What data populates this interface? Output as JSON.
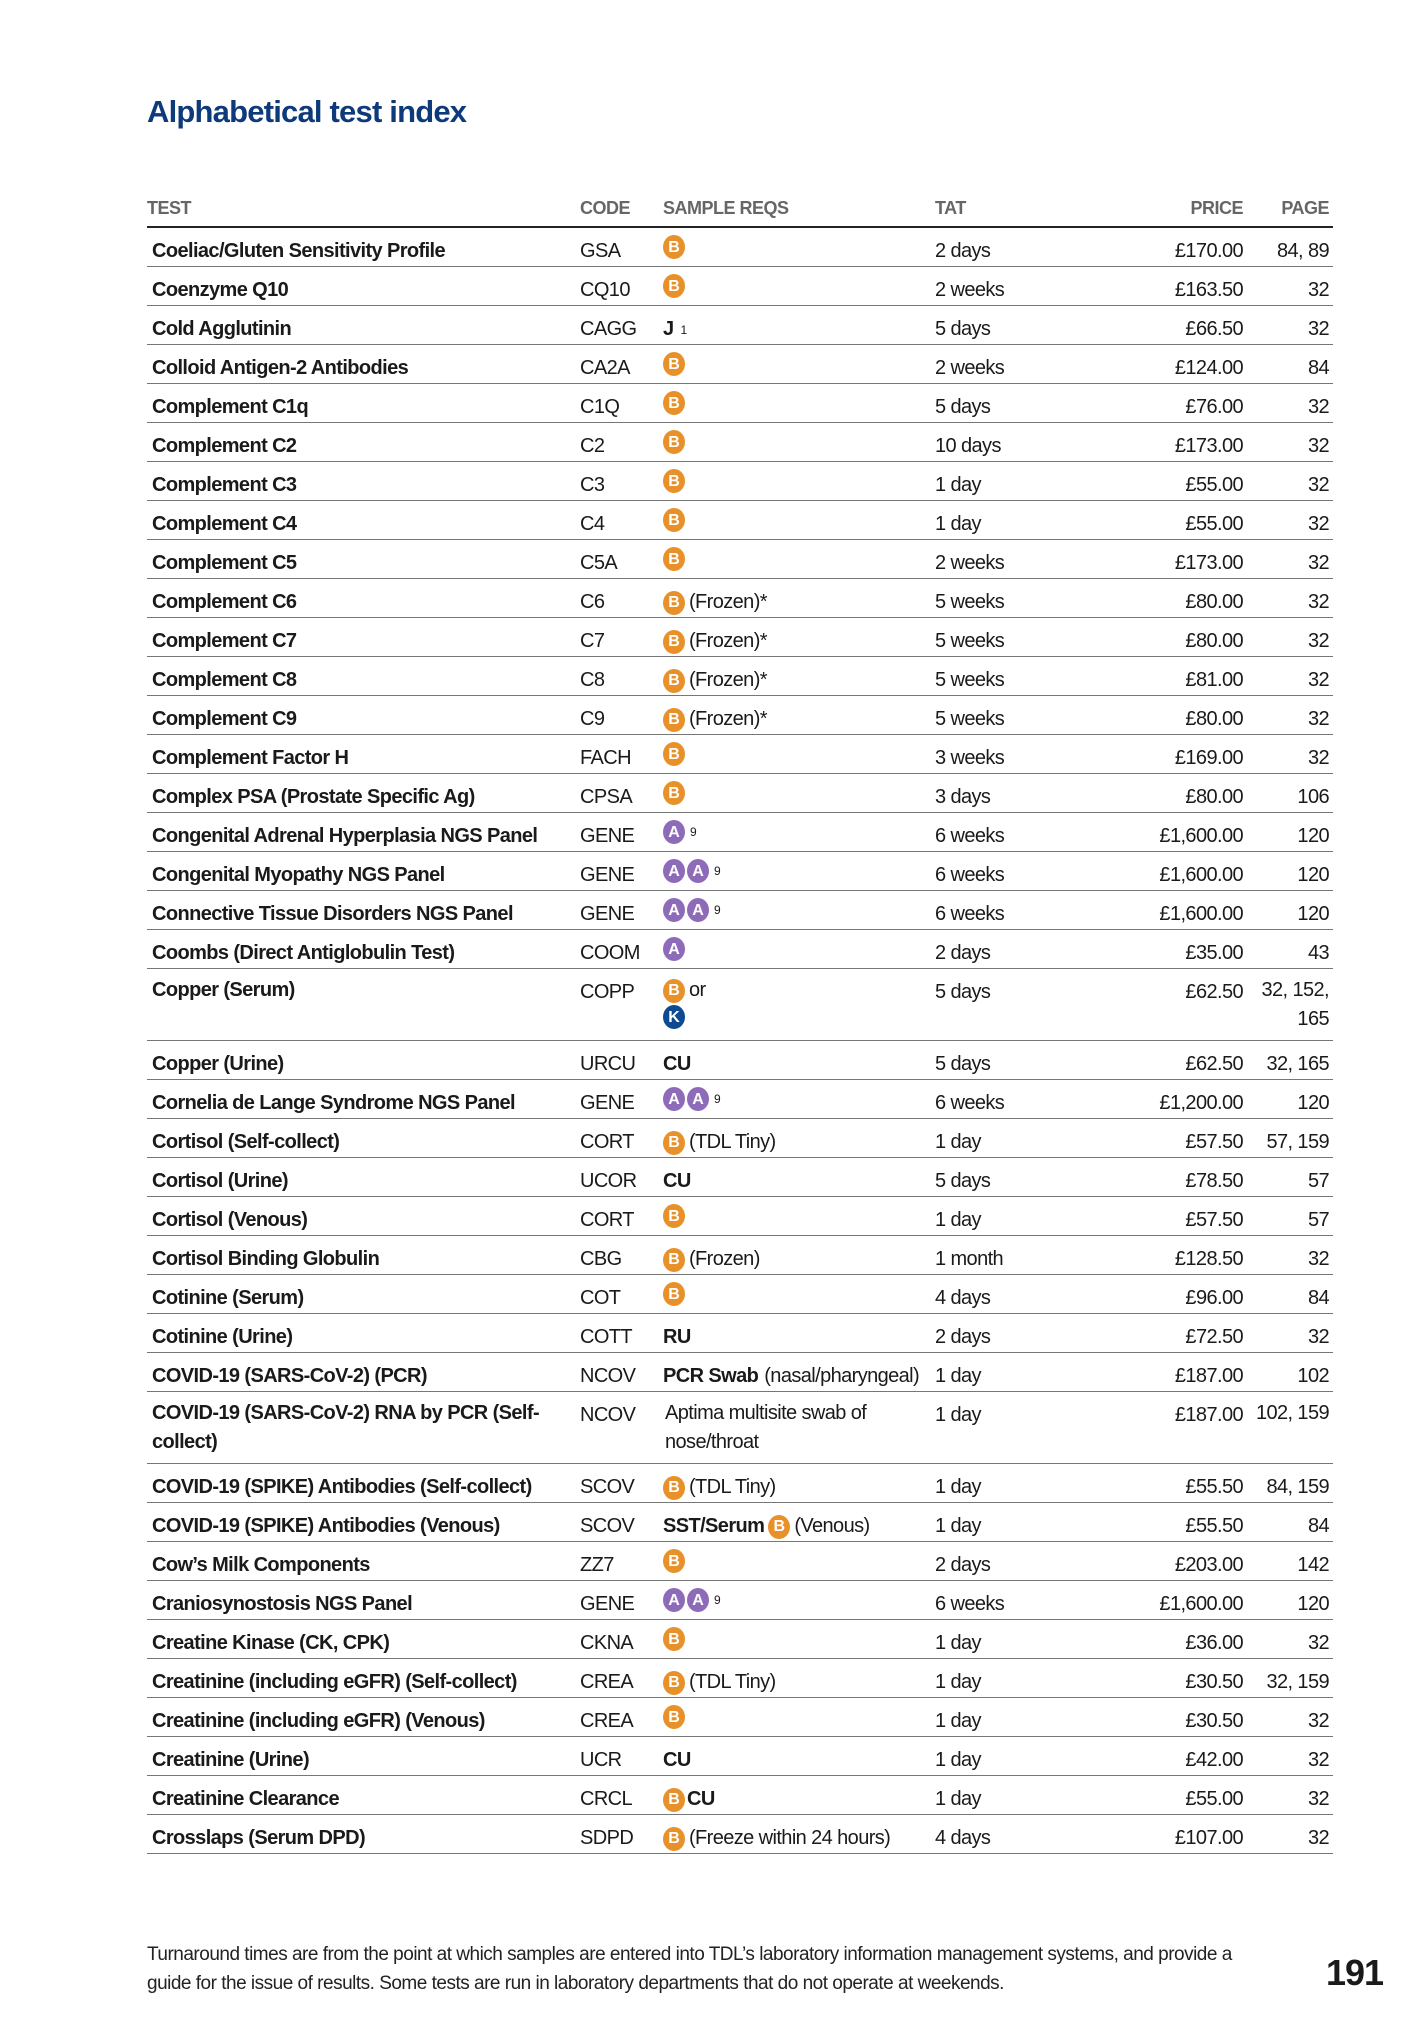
{
  "title": "Alphabetical test index",
  "columns": {
    "test": "TEST",
    "code": "CODE",
    "sample": "SAMPLE REQS",
    "tat": "TAT",
    "price": "PRICE",
    "page": "PAGE"
  },
  "badge_colors": {
    "B": "#e8912a",
    "A": "#8e6bb8",
    "K": "#0d4a8f"
  },
  "rows": [
    {
      "test": "Coeliac/Gluten Sensitivity Profile",
      "code": "GSA",
      "sample": [
        {
          "badge": "B"
        }
      ],
      "tat": "2 days",
      "price": "£170.00",
      "page": "84, 89"
    },
    {
      "test": "Coenzyme Q10",
      "code": "CQ10",
      "sample": [
        {
          "badge": "B"
        }
      ],
      "tat": "2 weeks",
      "price": "£163.50",
      "page": "32"
    },
    {
      "test": "Cold Agglutinin",
      "code": "CAGG",
      "sample": [
        {
          "bold": "J"
        },
        {
          "sup": "1"
        }
      ],
      "tat": "5 days",
      "price": "£66.50",
      "page": "32"
    },
    {
      "test": "Colloid Antigen-2 Antibodies",
      "code": "CA2A",
      "sample": [
        {
          "badge": "B"
        }
      ],
      "tat": "2 weeks",
      "price": "£124.00",
      "page": "84"
    },
    {
      "test": "Complement C1q",
      "code": "C1Q",
      "sample": [
        {
          "badge": "B"
        }
      ],
      "tat": "5 days",
      "price": "£76.00",
      "page": "32"
    },
    {
      "test": "Complement C2",
      "code": "C2",
      "sample": [
        {
          "badge": "B"
        }
      ],
      "tat": "10 days",
      "price": "£173.00",
      "page": "32"
    },
    {
      "test": "Complement C3",
      "code": "C3",
      "sample": [
        {
          "badge": "B"
        }
      ],
      "tat": "1 day",
      "price": "£55.00",
      "page": "32"
    },
    {
      "test": "Complement C4",
      "code": "C4",
      "sample": [
        {
          "badge": "B"
        }
      ],
      "tat": "1 day",
      "price": "£55.00",
      "page": "32"
    },
    {
      "test": "Complement C5",
      "code": "C5A",
      "sample": [
        {
          "badge": "B"
        }
      ],
      "tat": "2 weeks",
      "price": "£173.00",
      "page": "32"
    },
    {
      "test": "Complement C6",
      "code": "C6",
      "sample": [
        {
          "badge": "B"
        },
        {
          "text": "(Frozen)*"
        }
      ],
      "tat": "5 weeks",
      "price": "£80.00",
      "page": "32"
    },
    {
      "test": "Complement C7",
      "code": "C7",
      "sample": [
        {
          "badge": "B"
        },
        {
          "text": "(Frozen)*"
        }
      ],
      "tat": "5 weeks",
      "price": "£80.00",
      "page": "32"
    },
    {
      "test": "Complement C8",
      "code": "C8",
      "sample": [
        {
          "badge": "B"
        },
        {
          "text": "(Frozen)*"
        }
      ],
      "tat": "5 weeks",
      "price": "£81.00",
      "page": "32"
    },
    {
      "test": "Complement C9",
      "code": "C9",
      "sample": [
        {
          "badge": "B"
        },
        {
          "text": "(Frozen)*"
        }
      ],
      "tat": "5 weeks",
      "price": "£80.00",
      "page": "32"
    },
    {
      "test": "Complement Factor H",
      "code": "FACH",
      "sample": [
        {
          "badge": "B"
        }
      ],
      "tat": "3 weeks",
      "price": "£169.00",
      "page": "32"
    },
    {
      "test": "Complex PSA (Prostate Specific Ag)",
      "code": "CPSA",
      "sample": [
        {
          "badge": "B"
        }
      ],
      "tat": "3 days",
      "price": "£80.00",
      "page": "106"
    },
    {
      "test": "Congenital Adrenal Hyperplasia NGS Panel",
      "code": "GENE",
      "sample": [
        {
          "badge": "A"
        },
        {
          "sup": "9"
        }
      ],
      "tat": "6 weeks",
      "price": "£1,600.00",
      "page": "120"
    },
    {
      "test": "Congenital Myopathy NGS Panel",
      "code": "GENE",
      "sample": [
        {
          "badge": "A"
        },
        {
          "badge": "A"
        },
        {
          "sup": "9"
        }
      ],
      "tat": "6 weeks",
      "price": "£1,600.00",
      "page": "120"
    },
    {
      "test": "Connective Tissue Disorders NGS Panel",
      "code": "GENE",
      "sample": [
        {
          "badge": "A"
        },
        {
          "badge": "A"
        },
        {
          "sup": "9"
        }
      ],
      "tat": "6 weeks",
      "price": "£1,600.00",
      "page": "120"
    },
    {
      "test": "Coombs (Direct Antiglobulin Test)",
      "code": "COOM",
      "sample": [
        {
          "badge": "A"
        }
      ],
      "tat": "2 days",
      "price": "£35.00",
      "page": "43"
    },
    {
      "test": "Copper (Serum)",
      "code": "COPP",
      "sample": [
        {
          "badge": "B"
        },
        {
          "text": "or"
        },
        {
          "badge": "K"
        }
      ],
      "tat": "5 days",
      "price": "£62.50",
      "page": "32, 152, 165",
      "tall": true
    },
    {
      "test": "Copper (Urine)",
      "code": "URCU",
      "sample": [
        {
          "bold": "CU"
        }
      ],
      "tat": "5 days",
      "price": "£62.50",
      "page": "32, 165"
    },
    {
      "test": "Cornelia de Lange Syndrome NGS Panel",
      "code": "GENE",
      "sample": [
        {
          "badge": "A"
        },
        {
          "badge": "A"
        },
        {
          "sup": "9"
        }
      ],
      "tat": "6 weeks",
      "price": "£1,200.00",
      "page": "120"
    },
    {
      "test": "Cortisol (Self-collect)",
      "code": "CORT",
      "sample": [
        {
          "badge": "B"
        },
        {
          "text": "(TDL Tiny)"
        }
      ],
      "tat": "1 day",
      "price": "£57.50",
      "page": "57, 159"
    },
    {
      "test": "Cortisol (Urine)",
      "code": "UCOR",
      "sample": [
        {
          "bold": "CU"
        }
      ],
      "tat": "5 days",
      "price": "£78.50",
      "page": "57"
    },
    {
      "test": "Cortisol (Venous)",
      "code": "CORT",
      "sample": [
        {
          "badge": "B"
        }
      ],
      "tat": "1 day",
      "price": "£57.50",
      "page": "57"
    },
    {
      "test": "Cortisol Binding Globulin",
      "code": "CBG",
      "sample": [
        {
          "badge": "B"
        },
        {
          "text": "(Frozen)"
        }
      ],
      "tat": "1 month",
      "price": "£128.50",
      "page": "32"
    },
    {
      "test": "Cotinine (Serum)",
      "code": "COT",
      "sample": [
        {
          "badge": "B"
        }
      ],
      "tat": "4 days",
      "price": "£96.00",
      "page": "84"
    },
    {
      "test": "Cotinine (Urine)",
      "code": "COTT",
      "sample": [
        {
          "bold": "RU"
        }
      ],
      "tat": "2 days",
      "price": "£72.50",
      "page": "32"
    },
    {
      "test": "COVID-19 (SARS-CoV-2) (PCR)",
      "code": "NCOV",
      "sample": [
        {
          "bold": "PCR Swab"
        },
        {
          "text": "(nasal/pharyngeal)"
        }
      ],
      "tat": "1 day",
      "price": "£187.00",
      "page": "102"
    },
    {
      "test": "COVID-19 (SARS-CoV-2) RNA by PCR (Self-collect)",
      "code": "NCOV",
      "sample": [
        {
          "text": "Aptima multisite swab of nose/throat"
        }
      ],
      "tat": "1 day",
      "price": "£187.00",
      "page": "102, 159",
      "tall": true
    },
    {
      "test": "COVID-19 (SPIKE) Antibodies (Self-collect)",
      "code": "SCOV",
      "sample": [
        {
          "badge": "B"
        },
        {
          "text": "(TDL Tiny)"
        }
      ],
      "tat": "1 day",
      "price": "£55.50",
      "page": "84, 159"
    },
    {
      "test": "COVID-19 (SPIKE) Antibodies (Venous)",
      "code": "SCOV",
      "sample": [
        {
          "bold": "SST/Serum"
        },
        {
          "badge": "B"
        },
        {
          "text": "(Venous)"
        }
      ],
      "tat": "1 day",
      "price": "£55.50",
      "page": "84"
    },
    {
      "test": "Cow’s Milk Components",
      "code": "ZZ7",
      "sample": [
        {
          "badge": "B"
        }
      ],
      "tat": "2 days",
      "price": "£203.00",
      "page": "142"
    },
    {
      "test": "Craniosynostosis NGS Panel",
      "code": "GENE",
      "sample": [
        {
          "badge": "A"
        },
        {
          "badge": "A"
        },
        {
          "sup": "9"
        }
      ],
      "tat": "6 weeks",
      "price": "£1,600.00",
      "page": "120"
    },
    {
      "test": "Creatine Kinase (CK, CPK)",
      "code": "CKNA",
      "sample": [
        {
          "badge": "B"
        }
      ],
      "tat": "1 day",
      "price": "£36.00",
      "page": "32"
    },
    {
      "test": "Creatinine (including eGFR) (Self-collect)",
      "code": "CREA",
      "sample": [
        {
          "badge": "B"
        },
        {
          "text": "(TDL Tiny)"
        }
      ],
      "tat": "1 day",
      "price": "£30.50",
      "page": "32, 159"
    },
    {
      "test": "Creatinine (including eGFR) (Venous)",
      "code": "CREA",
      "sample": [
        {
          "badge": "B"
        }
      ],
      "tat": "1 day",
      "price": "£30.50",
      "page": "32"
    },
    {
      "test": "Creatinine (Urine)",
      "code": "UCR",
      "sample": [
        {
          "bold": "CU"
        }
      ],
      "tat": "1 day",
      "price": "£42.00",
      "page": "32"
    },
    {
      "test": "Creatinine Clearance",
      "code": "CRCL",
      "sample": [
        {
          "badge": "B"
        },
        {
          "bold": "CU"
        }
      ],
      "tat": "1 day",
      "price": "£55.00",
      "page": "32"
    },
    {
      "test": "Crosslaps (Serum DPD)",
      "code": "SDPD",
      "sample": [
        {
          "badge": "B"
        },
        {
          "text": "(Freeze within 24 hours)"
        }
      ],
      "tat": "4 days",
      "price": "£107.00",
      "page": "32"
    }
  ],
  "footer": "Turnaround times are from the point at which samples are entered into TDL’s laboratory information management systems, and provide a guide for the issue of results. Some tests are run in laboratory departments that do not operate at weekends.",
  "page_number": "191"
}
